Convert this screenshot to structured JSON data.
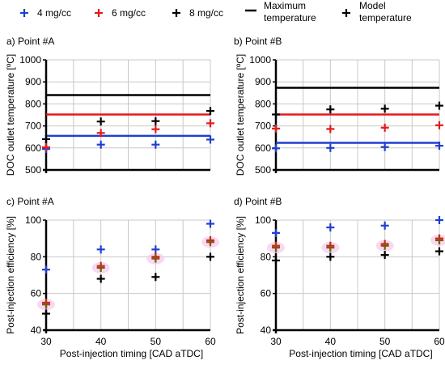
{
  "legend": {
    "items": [
      {
        "label": "4 mg/cc",
        "color": "#1f3fd0",
        "marker": "plus"
      },
      {
        "label": "6 mg/cc",
        "color": "#e31a1c",
        "marker": "plus"
      },
      {
        "label": "8 mg/cc",
        "color": "#000000",
        "marker": "plus"
      },
      {
        "label": "Maximum\ntemperature",
        "color": "#000000",
        "marker": "line"
      },
      {
        "label": "Model\ntemperature",
        "color": "#000000",
        "marker": "plus"
      }
    ]
  },
  "chart_data": [
    {
      "type": "scatter",
      "panel_title": "a) Point #A",
      "ylabel": "DOC outlet temperature [ºC]",
      "xlabel": "",
      "x_ticks": [
        30,
        40,
        50,
        60
      ],
      "y_ticks": [
        500,
        600,
        700,
        800,
        900,
        1000
      ],
      "xlim": [
        30,
        60
      ],
      "ylim": [
        500,
        1000
      ],
      "grid": true,
      "show_x_tick_labels": false,
      "series": [
        {
          "name": "4 mg/cc",
          "color": "#1f3fd0",
          "x": [
            30,
            40,
            50,
            60
          ],
          "y": [
            595,
            615,
            615,
            638
          ]
        },
        {
          "name": "6 mg/cc",
          "color": "#e31a1c",
          "x": [
            30,
            40,
            50,
            60
          ],
          "y": [
            603,
            668,
            685,
            712
          ]
        },
        {
          "name": "8 mg/cc",
          "color": "#000000",
          "x": [
            30,
            40,
            50,
            60
          ],
          "y": [
            640,
            720,
            722,
            768
          ]
        }
      ],
      "hlines": [
        {
          "name": "4 mg/cc",
          "color": "#1f3fd0",
          "y": 655
        },
        {
          "name": "6 mg/cc",
          "color": "#e31a1c",
          "y": 752
        },
        {
          "name": "8 mg/cc",
          "color": "#000000",
          "y": 840
        }
      ]
    },
    {
      "type": "scatter",
      "panel_title": "b) Point #B",
      "ylabel": "DOC outlet temperature [ºC]",
      "xlabel": "",
      "x_ticks": [
        30,
        40,
        50,
        60
      ],
      "y_ticks": [
        500,
        600,
        700,
        800,
        900,
        1000
      ],
      "xlim": [
        30,
        60
      ],
      "ylim": [
        500,
        1000
      ],
      "grid": true,
      "show_x_tick_labels": false,
      "series": [
        {
          "name": "4 mg/cc",
          "color": "#1f3fd0",
          "x": [
            30,
            40,
            50,
            60
          ],
          "y": [
            598,
            600,
            604,
            610
          ]
        },
        {
          "name": "6 mg/cc",
          "color": "#e31a1c",
          "x": [
            30,
            40,
            50,
            60
          ],
          "y": [
            688,
            686,
            692,
            703
          ]
        },
        {
          "name": "8 mg/cc",
          "color": "#000000",
          "x": [
            30,
            40,
            50,
            60
          ],
          "y": [
            752,
            775,
            778,
            792
          ]
        }
      ],
      "hlines": [
        {
          "name": "4 mg/cc",
          "color": "#1f3fd0",
          "y": 623
        },
        {
          "name": "6 mg/cc",
          "color": "#e31a1c",
          "y": 752
        },
        {
          "name": "8 mg/cc",
          "color": "#000000",
          "y": 873
        }
      ]
    },
    {
      "type": "scatter",
      "panel_title": "c) Point #A",
      "ylabel": "Post-injection efficiency [%]",
      "xlabel": "Post-injection timing [CAD aTDC]",
      "x_ticks": [
        30,
        40,
        50,
        60
      ],
      "y_ticks": [
        40,
        60,
        80,
        100
      ],
      "xlim": [
        30,
        60
      ],
      "ylim": [
        40,
        100
      ],
      "grid": true,
      "show_x_tick_labels": true,
      "series": [
        {
          "name": "4 mg/cc",
          "color": "#1f3fd0",
          "x": [
            30,
            40,
            50,
            60
          ],
          "y": [
            73,
            84,
            84,
            98
          ]
        },
        {
          "name": "6 mg/cc",
          "color": "#e31a1c",
          "x": [
            30,
            40,
            50,
            60
          ],
          "y": [
            55,
            75,
            80,
            89
          ]
        },
        {
          "name": "8 mg/cc",
          "color": "#000000",
          "x": [
            30,
            40,
            50,
            60
          ],
          "y": [
            49,
            68,
            69,
            80
          ]
        },
        {
          "name": "Model temperature",
          "color": "#7a5a10",
          "x": [
            30,
            40,
            50,
            60
          ],
          "y": [
            54,
            74,
            79,
            88
          ]
        }
      ],
      "hlines": []
    },
    {
      "type": "scatter",
      "panel_title": "d) Point #B",
      "ylabel": "Post-injection efficiency [%]",
      "xlabel": "Post-injection timing [CAD aTDC]",
      "x_ticks": [
        30,
        40,
        50,
        60
      ],
      "y_ticks": [
        40,
        60,
        80,
        100
      ],
      "xlim": [
        30,
        60
      ],
      "ylim": [
        40,
        100
      ],
      "grid": true,
      "show_x_tick_labels": true,
      "series": [
        {
          "name": "4 mg/cc",
          "color": "#1f3fd0",
          "x": [
            30,
            40,
            50,
            60
          ],
          "y": [
            93,
            96,
            97,
            100
          ]
        },
        {
          "name": "6 mg/cc",
          "color": "#e31a1c",
          "x": [
            30,
            40,
            50,
            60
          ],
          "y": [
            86,
            86,
            87,
            90
          ]
        },
        {
          "name": "8 mg/cc",
          "color": "#000000",
          "x": [
            30,
            40,
            50,
            60
          ],
          "y": [
            78,
            80,
            81,
            83
          ]
        },
        {
          "name": "Model temperature",
          "color": "#7a5a10",
          "x": [
            30,
            40,
            50,
            60
          ],
          "y": [
            85,
            85,
            86,
            89
          ]
        }
      ],
      "hlines": []
    }
  ]
}
